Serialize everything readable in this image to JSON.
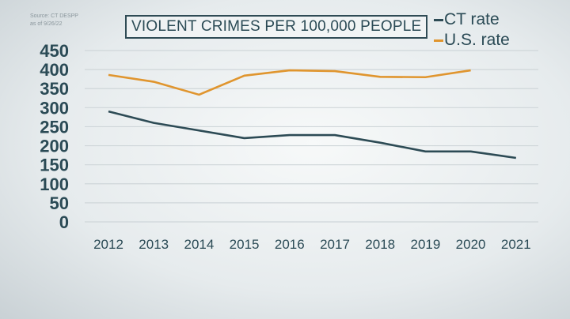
{
  "source": {
    "line1": "Source: CT DESPP",
    "line2": "as of 9/26/22"
  },
  "chart_data": {
    "type": "line",
    "title": "VIOLENT CRIMES PER 100,000 PEOPLE",
    "xlabel": "",
    "ylabel": "",
    "x": [
      "2012",
      "2013",
      "2014",
      "2015",
      "2016",
      "2017",
      "2018",
      "2019",
      "2020",
      "2021"
    ],
    "yticks": [
      "0",
      "50",
      "100",
      "150",
      "200",
      "250",
      "300",
      "350",
      "400",
      "450"
    ],
    "ylim": [
      0,
      450
    ],
    "grid": true,
    "legend_position": "top-right",
    "series": [
      {
        "name": "CT rate",
        "color": "#2d4b55",
        "values": [
          290,
          260,
          240,
          220,
          228,
          228,
          208,
          185,
          185,
          168
        ]
      },
      {
        "name": "U.S. rate",
        "color": "#e0952e",
        "values": [
          386,
          368,
          334,
          384,
          398,
          396,
          381,
          380,
          398,
          null
        ]
      }
    ]
  }
}
